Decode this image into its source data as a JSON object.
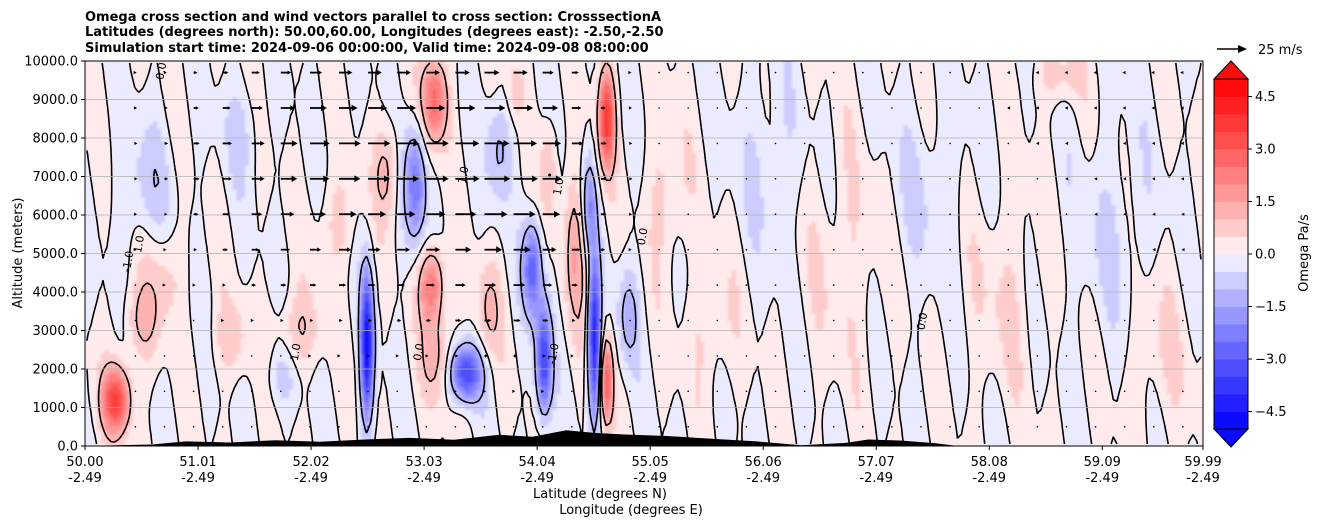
{
  "chart_data": {
    "type": "heatmap",
    "title_lines": [
      "Omega cross section and wind vectors parallel to cross section: CrosssectionA",
      "Latitudes (degrees north): 50.00,60.00, Longitudes (degrees east): -2.50,-2.50",
      "Simulation start time: 2024-09-06 00:00:00, Valid time: 2024-09-08 08:00:00"
    ],
    "xlabel_lines": [
      "Latitude (degrees N)",
      "Longitude (degrees E)"
    ],
    "ylabel": "Altitude (meters)",
    "xlim": [
      50.0,
      59.99
    ],
    "ylim": [
      0,
      10000
    ],
    "x_ticks": [
      {
        "lat": "50.00",
        "lon": "-2.49",
        "value": 50.0
      },
      {
        "lat": "51.01",
        "lon": "-2.49",
        "value": 51.01
      },
      {
        "lat": "52.02",
        "lon": "-2.49",
        "value": 52.02
      },
      {
        "lat": "53.03",
        "lon": "-2.49",
        "value": 53.03
      },
      {
        "lat": "54.04",
        "lon": "-2.49",
        "value": 54.04
      },
      {
        "lat": "55.05",
        "lon": "-2.49",
        "value": 55.05
      },
      {
        "lat": "56.06",
        "lon": "-2.49",
        "value": 56.06
      },
      {
        "lat": "57.07",
        "lon": "-2.49",
        "value": 57.07
      },
      {
        "lat": "58.08",
        "lon": "-2.49",
        "value": 58.08
      },
      {
        "lat": "59.09",
        "lon": "-2.49",
        "value": 59.09
      },
      {
        "lat": "59.99",
        "lon": "-2.49",
        "value": 59.99
      }
    ],
    "y_ticks": [
      {
        "label": "0.0",
        "value": 0
      },
      {
        "label": "1000.0",
        "value": 1000
      },
      {
        "label": "2000.0",
        "value": 2000
      },
      {
        "label": "3000.0",
        "value": 3000
      },
      {
        "label": "4000.0",
        "value": 4000
      },
      {
        "label": "5000.0",
        "value": 5000
      },
      {
        "label": "6000.0",
        "value": 6000
      },
      {
        "label": "7000.0",
        "value": 7000
      },
      {
        "label": "8000.0",
        "value": 8000
      },
      {
        "label": "9000.0",
        "value": 9000
      },
      {
        "label": "10000.0",
        "value": 10000
      }
    ],
    "grid": "horizontal",
    "colorbar": {
      "label": "Omega Pa/s",
      "range": [
        -5.0,
        5.0
      ],
      "level_step": 0.5,
      "extend": "both",
      "ticks": [
        {
          "label": "4.5",
          "value": 4.5
        },
        {
          "label": "3.0",
          "value": 3.0
        },
        {
          "label": "1.5",
          "value": 1.5
        },
        {
          "label": "0.0",
          "value": 0.0
        },
        {
          "label": "−1.5",
          "value": -1.5
        },
        {
          "label": "−3.0",
          "value": -3.0
        },
        {
          "label": "−4.5",
          "value": -4.5
        }
      ],
      "negative_color": "#0000ff",
      "positive_color": "#ff0000",
      "neutral_color": "#ffffff"
    },
    "vector_key": {
      "label": "25 m/s",
      "speed": 25
    },
    "contour_levels": [
      -1.0,
      0.0,
      1.0
    ],
    "contour_label_samples": [
      "0.0",
      "1.0",
      "-1.0",
      "1.0",
      "0.0",
      "0.0",
      "1.0",
      "-1.0",
      "0.0",
      "1.0"
    ],
    "omega_features": [
      {
        "lat": 50.28,
        "alt": 1200,
        "sx": 0.09,
        "sy": 600,
        "value": 3.5
      },
      {
        "lat": 50.5,
        "alt": 3200,
        "sx": 0.12,
        "sy": 700,
        "value": 1.0
      },
      {
        "lat": 50.55,
        "alt": 6800,
        "sx": 0.18,
        "sy": 1200,
        "value": -0.7
      },
      {
        "lat": 50.7,
        "alt": 4500,
        "sx": 0.12,
        "sy": 900,
        "value": 0.8
      },
      {
        "lat": 51.3,
        "alt": 2800,
        "sx": 0.12,
        "sy": 700,
        "value": 0.8
      },
      {
        "lat": 51.4,
        "alt": 8200,
        "sx": 0.12,
        "sy": 900,
        "value": -0.6
      },
      {
        "lat": 51.75,
        "alt": 1800,
        "sx": 0.1,
        "sy": 600,
        "value": -0.7
      },
      {
        "lat": 51.9,
        "alt": 3000,
        "sx": 0.14,
        "sy": 700,
        "value": 1.0
      },
      {
        "lat": 52.25,
        "alt": 5800,
        "sx": 0.12,
        "sy": 900,
        "value": 0.7
      },
      {
        "lat": 52.52,
        "alt": 2600,
        "sx": 0.04,
        "sy": 1300,
        "value": -4.6
      },
      {
        "lat": 52.7,
        "alt": 7200,
        "sx": 0.08,
        "sy": 900,
        "value": 1.2
      },
      {
        "lat": 52.95,
        "alt": 6800,
        "sx": 0.07,
        "sy": 1100,
        "value": -2.4
      },
      {
        "lat": 53.1,
        "alt": 4200,
        "sx": 0.08,
        "sy": 700,
        "value": 2.5
      },
      {
        "lat": 53.12,
        "alt": 9000,
        "sx": 0.08,
        "sy": 800,
        "value": 2.8
      },
      {
        "lat": 53.15,
        "alt": 2300,
        "sx": 0.1,
        "sy": 800,
        "value": 1.2
      },
      {
        "lat": 53.4,
        "alt": 1900,
        "sx": 0.1,
        "sy": 500,
        "value": -3.5
      },
      {
        "lat": 53.6,
        "alt": 3500,
        "sx": 0.08,
        "sy": 900,
        "value": 1.0
      },
      {
        "lat": 53.7,
        "alt": 7800,
        "sx": 0.08,
        "sy": 1000,
        "value": -1.2
      },
      {
        "lat": 53.85,
        "alt": 9300,
        "sx": 0.06,
        "sy": 600,
        "value": 1.0
      },
      {
        "lat": 54.0,
        "alt": 4600,
        "sx": 0.06,
        "sy": 900,
        "value": -2.8
      },
      {
        "lat": 54.1,
        "alt": 2200,
        "sx": 0.05,
        "sy": 1000,
        "value": -3.5
      },
      {
        "lat": 54.15,
        "alt": 7200,
        "sx": 0.05,
        "sy": 900,
        "value": 1.2
      },
      {
        "lat": 54.4,
        "alt": 5200,
        "sx": 0.08,
        "sy": 1400,
        "value": 1.4
      },
      {
        "lat": 54.5,
        "alt": 6200,
        "sx": 0.05,
        "sy": 900,
        "value": -2.0
      },
      {
        "lat": 54.55,
        "alt": 2800,
        "sx": 0.04,
        "sy": 1400,
        "value": -4.3
      },
      {
        "lat": 54.66,
        "alt": 8500,
        "sx": 0.05,
        "sy": 900,
        "value": 3.6
      },
      {
        "lat": 54.66,
        "alt": 1700,
        "sx": 0.04,
        "sy": 800,
        "value": 3.0
      },
      {
        "lat": 54.85,
        "alt": 3400,
        "sx": 0.07,
        "sy": 900,
        "value": -1.2
      },
      {
        "lat": 55.2,
        "alt": 6500,
        "sx": 0.12,
        "sy": 1300,
        "value": 0.8
      },
      {
        "lat": 55.6,
        "alt": 3000,
        "sx": 0.15,
        "sy": 1100,
        "value": 0.6
      },
      {
        "lat": 56.1,
        "alt": 7500,
        "sx": 0.2,
        "sy": 1600,
        "value": -0.5
      },
      {
        "lat": 56.8,
        "alt": 5000,
        "sx": 0.25,
        "sy": 2000,
        "value": 0.5
      },
      {
        "lat": 57.5,
        "alt": 6500,
        "sx": 0.25,
        "sy": 1600,
        "value": -0.5
      },
      {
        "lat": 58.2,
        "alt": 4000,
        "sx": 0.22,
        "sy": 1800,
        "value": 0.5
      },
      {
        "lat": 58.7,
        "alt": 9600,
        "sx": 0.15,
        "sy": 500,
        "value": 0.8
      },
      {
        "lat": 59.2,
        "alt": 5500,
        "sx": 0.25,
        "sy": 1800,
        "value": -0.5
      },
      {
        "lat": 59.6,
        "alt": 2500,
        "sx": 0.2,
        "sy": 1500,
        "value": 0.5
      }
    ],
    "wind_jets": [
      {
        "lat": 52.4,
        "alt": 7500,
        "sx": 0.9,
        "sy": 2200,
        "speed": 24
      },
      {
        "lat": 53.8,
        "alt": 7000,
        "sx": 0.5,
        "sy": 2500,
        "speed": 20
      }
    ],
    "terrain": [
      {
        "lat": 50.0,
        "h": 0
      },
      {
        "lat": 50.6,
        "h": 40
      },
      {
        "lat": 50.9,
        "h": 120
      },
      {
        "lat": 51.3,
        "h": 90
      },
      {
        "lat": 51.7,
        "h": 150
      },
      {
        "lat": 52.1,
        "h": 110
      },
      {
        "lat": 52.5,
        "h": 170
      },
      {
        "lat": 52.9,
        "h": 210
      },
      {
        "lat": 53.3,
        "h": 160
      },
      {
        "lat": 53.7,
        "h": 290
      },
      {
        "lat": 54.0,
        "h": 240
      },
      {
        "lat": 54.3,
        "h": 410
      },
      {
        "lat": 54.55,
        "h": 340
      },
      {
        "lat": 54.8,
        "h": 300
      },
      {
        "lat": 55.2,
        "h": 260
      },
      {
        "lat": 55.6,
        "h": 190
      },
      {
        "lat": 56.0,
        "h": 120
      },
      {
        "lat": 56.4,
        "h": 20
      },
      {
        "lat": 56.8,
        "h": 80
      },
      {
        "lat": 57.0,
        "h": 170
      },
      {
        "lat": 57.3,
        "h": 140
      },
      {
        "lat": 57.6,
        "h": 70
      },
      {
        "lat": 57.8,
        "h": 0
      },
      {
        "lat": 59.99,
        "h": 0
      }
    ]
  }
}
